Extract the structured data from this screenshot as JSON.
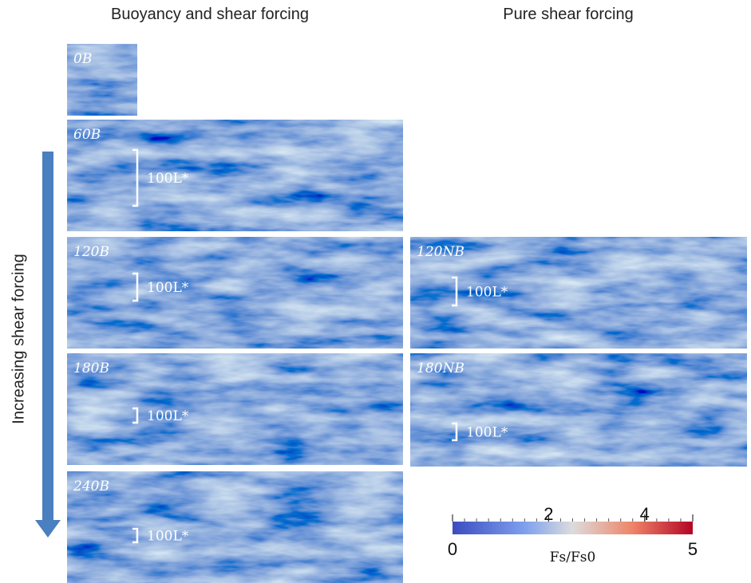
{
  "column_titles": [
    "Buoyancy and shear forcing",
    "Pure shear forcing"
  ],
  "axis_label": "Increasing shear forcing",
  "panels": [
    {
      "label": "0B"
    },
    {
      "label": "60B",
      "scale": "100L*"
    },
    {
      "label": "120B",
      "scale": "100L*"
    },
    {
      "label": "120NB",
      "scale": "100L*"
    },
    {
      "label": "180B",
      "scale": "100L*"
    },
    {
      "label": "180NB",
      "scale": "100L*"
    },
    {
      "label": "240B",
      "scale": "100L*"
    }
  ],
  "colorbar": {
    "range": [
      0,
      5
    ],
    "ticks": [
      0,
      2,
      4,
      5
    ],
    "label": "Fs/Fs0"
  }
}
